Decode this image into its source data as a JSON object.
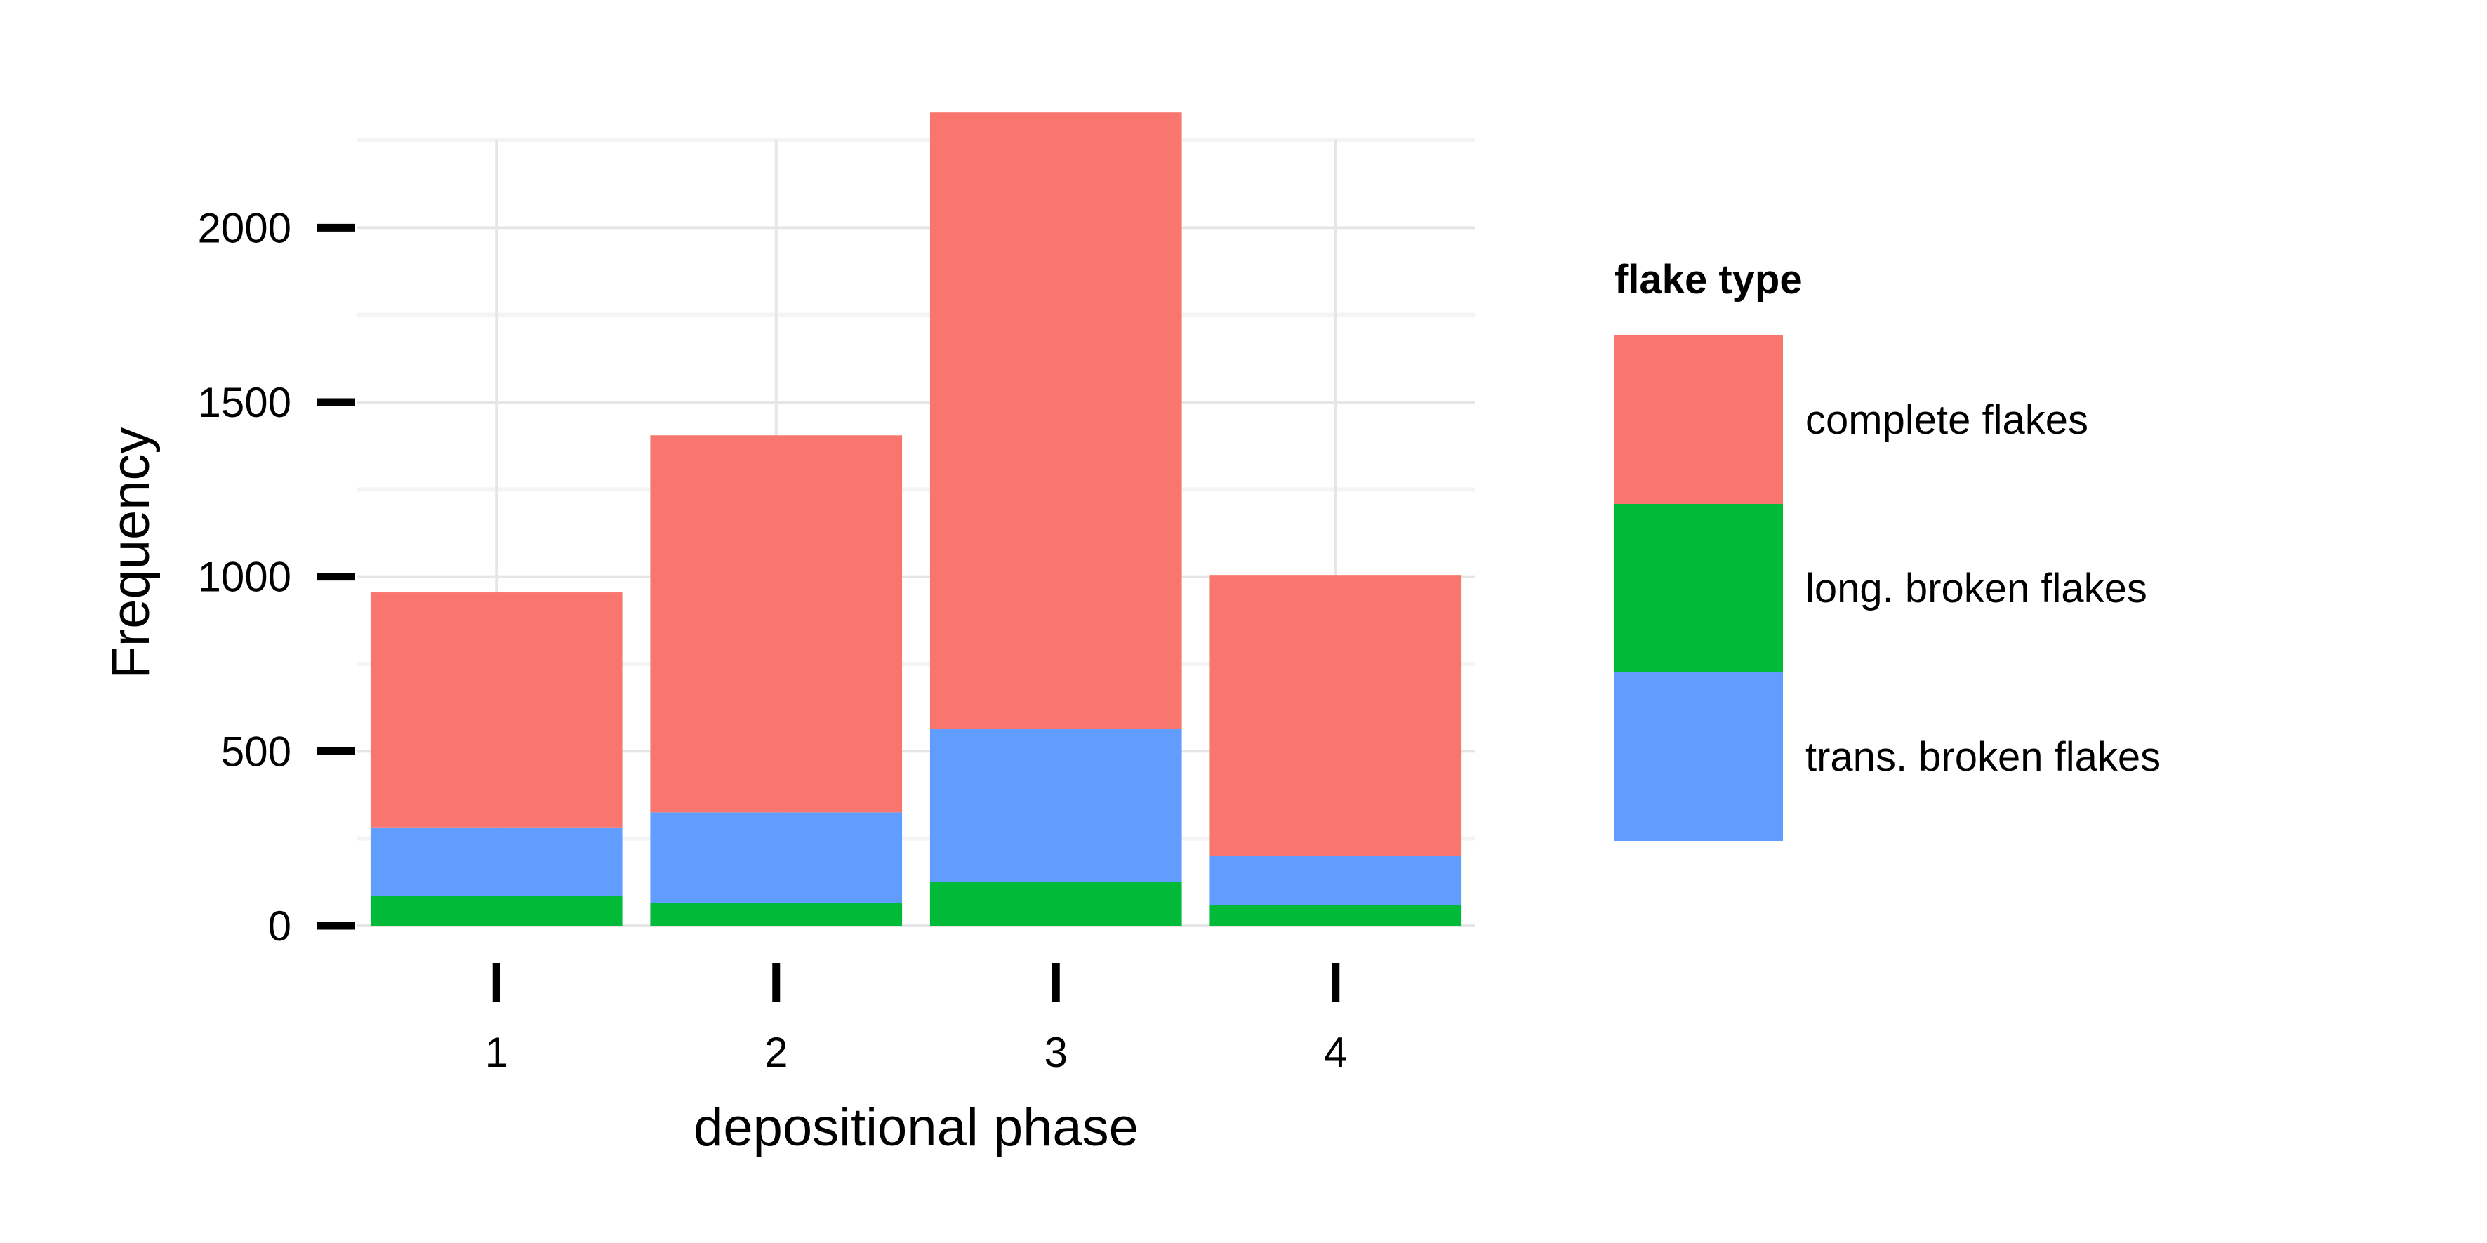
{
  "chart_data": {
    "type": "bar",
    "stacked": true,
    "title": "",
    "xlabel": "depositional phase",
    "ylabel": "Frequency",
    "categories": [
      "1",
      "2",
      "3",
      "4"
    ],
    "ylim": [
      0,
      2250
    ],
    "yticks": [
      0,
      500,
      1000,
      1500,
      2000
    ],
    "grid": true,
    "legend": {
      "title": "flake type",
      "position": "right"
    },
    "series": [
      {
        "name": "complete flakes",
        "color": "#F8766D",
        "values": [
          675,
          1080,
          1765,
          805
        ]
      },
      {
        "name": "long. broken flakes",
        "color": "#00BA38",
        "values": [
          85,
          65,
          125,
          60
        ]
      },
      {
        "name": "trans. broken flakes",
        "color": "#619CFF",
        "values": [
          195,
          260,
          440,
          140
        ]
      }
    ],
    "stack_order_bottom_to_top": [
      "long. broken flakes",
      "trans. broken flakes",
      "complete flakes"
    ]
  }
}
